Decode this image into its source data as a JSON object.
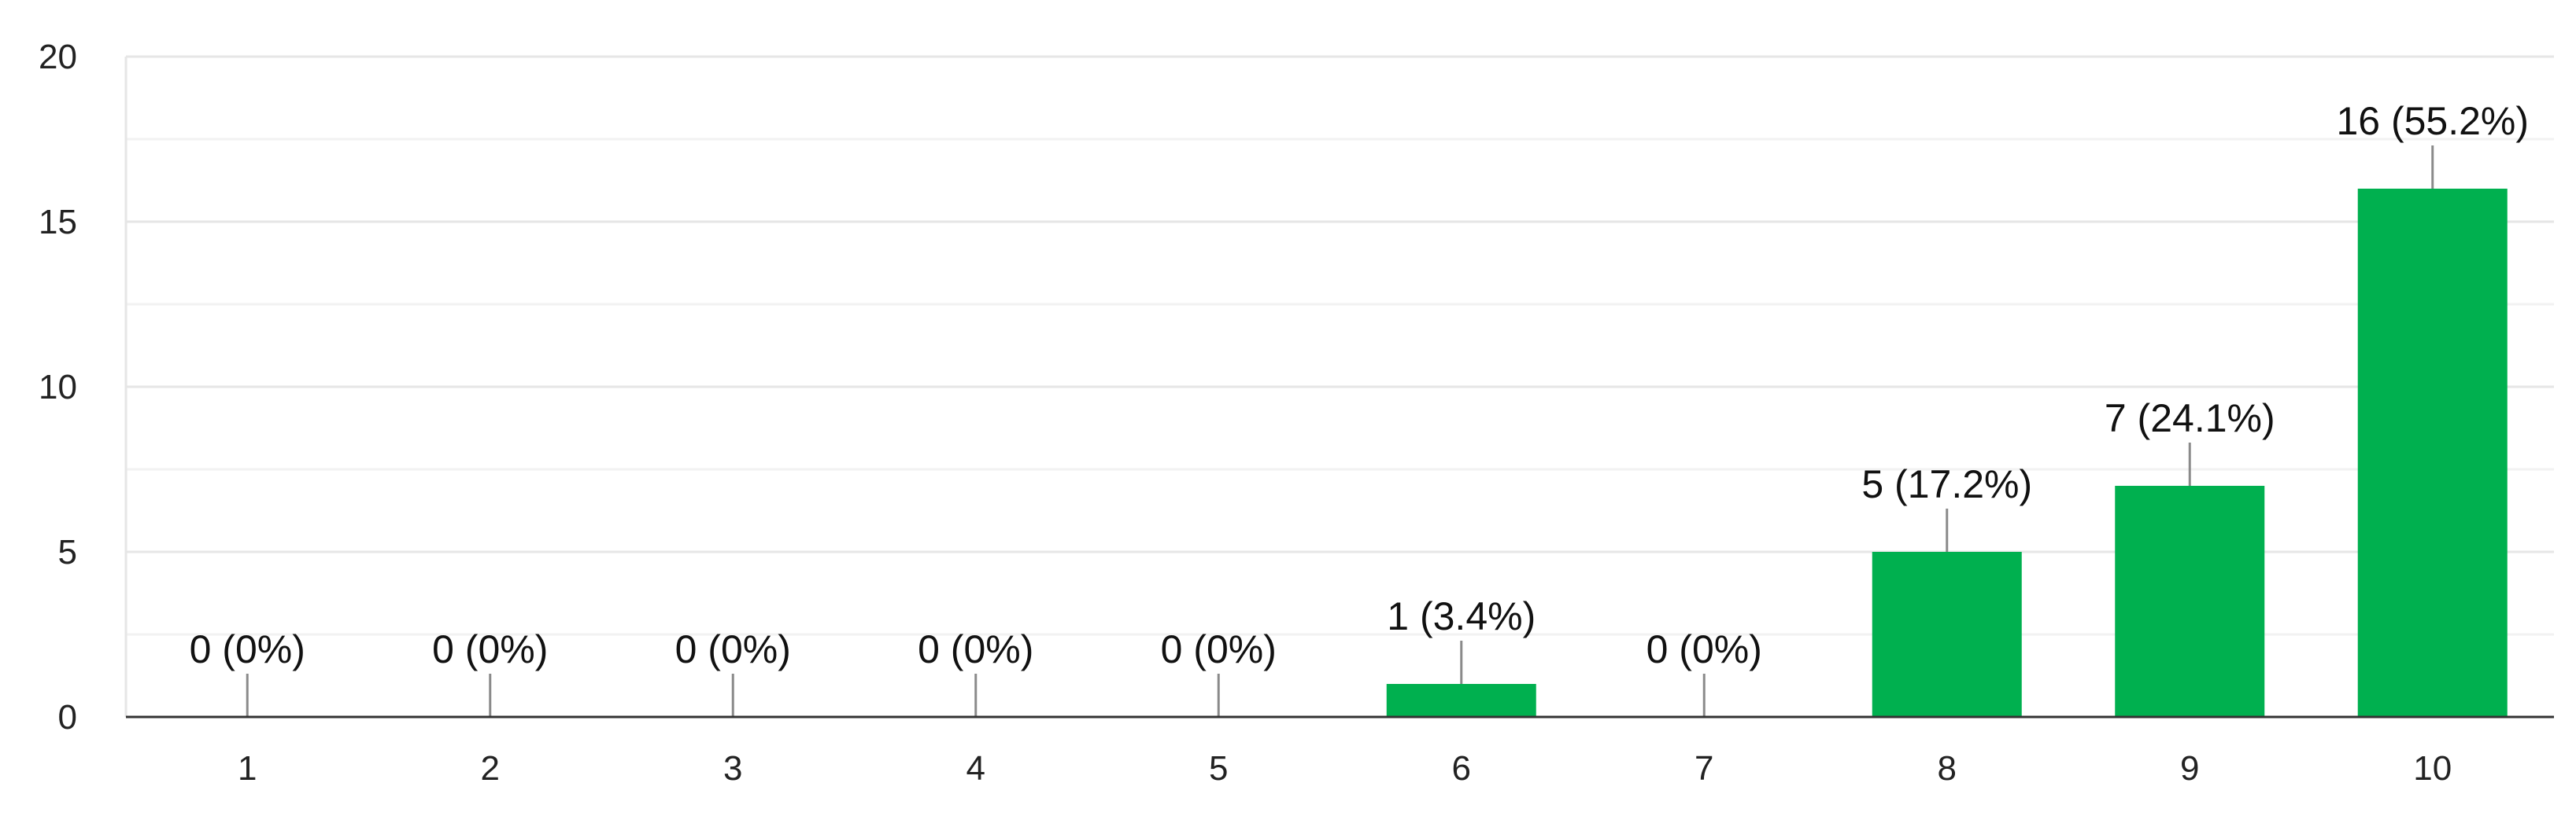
{
  "chart_data": {
    "type": "bar",
    "categories": [
      "1",
      "2",
      "3",
      "4",
      "5",
      "6",
      "7",
      "8",
      "9",
      "10"
    ],
    "values": [
      0,
      0,
      0,
      0,
      0,
      1,
      0,
      5,
      7,
      16
    ],
    "data_labels": [
      "0 (0%)",
      "0 (0%)",
      "0 (0%)",
      "0 (0%)",
      "0 (0%)",
      "1 (3.4%)",
      "0 (0%)",
      "5 (17.2%)",
      "7 (24.1%)",
      "16 (55.2%)"
    ],
    "y_ticks": [
      "0",
      "5",
      "10",
      "15",
      "20"
    ],
    "ylim": [
      0,
      20
    ],
    "grid": true,
    "legend": "none",
    "bar_color": "#00b04f"
  }
}
